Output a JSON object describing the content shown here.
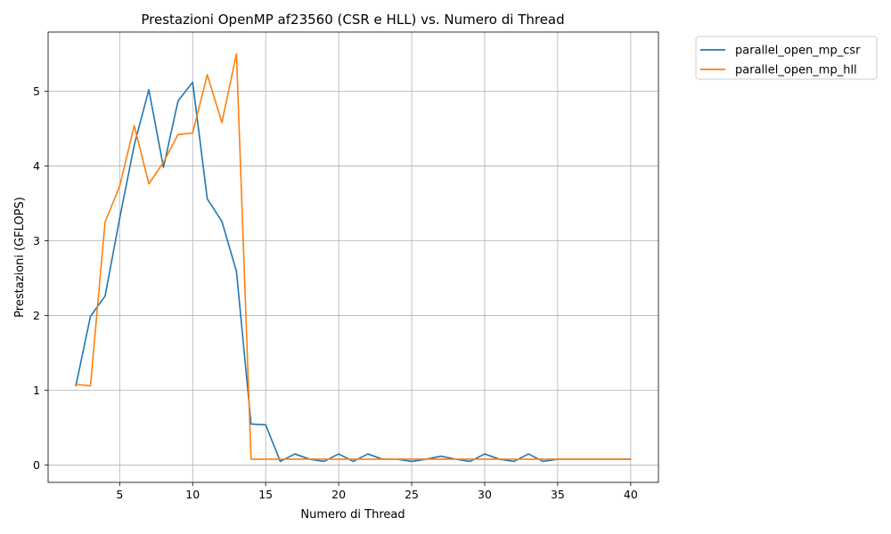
{
  "chart_data": {
    "type": "line",
    "title": "Prestazioni OpenMP af23560 (CSR e HLL) vs. Numero di Thread",
    "xlabel": "Numero di Thread",
    "ylabel": "Prestazioni (GFLOPS)",
    "xlim": [
      0.1,
      41.9
    ],
    "ylim": [
      -0.23,
      5.79
    ],
    "xticks": [
      5,
      10,
      15,
      20,
      25,
      30,
      35,
      40
    ],
    "xtick_labels": [
      "5",
      "10",
      "15",
      "20",
      "25",
      "30",
      "35",
      "40"
    ],
    "yticks": [
      0,
      1,
      2,
      3,
      4,
      5
    ],
    "ytick_labels": [
      "0",
      "1",
      "2",
      "3",
      "4",
      "5"
    ],
    "grid": true,
    "legend_position": "outside upper right",
    "x": [
      2,
      3,
      4,
      5,
      6,
      7,
      8,
      9,
      10,
      11,
      12,
      13,
      14,
      15,
      16,
      17,
      18,
      19,
      20,
      21,
      22,
      23,
      24,
      25,
      26,
      27,
      28,
      29,
      30,
      31,
      32,
      33,
      34,
      35,
      36,
      37,
      38,
      39,
      40
    ],
    "series": [
      {
        "name": "parallel_open_mp_csr",
        "color": "#1f77b4",
        "values": [
          1.06,
          1.99,
          2.26,
          3.3,
          4.28,
          5.02,
          3.98,
          4.87,
          5.12,
          3.56,
          3.26,
          2.59,
          0.55,
          0.54,
          0.05,
          0.15,
          0.08,
          0.05,
          0.15,
          0.05,
          0.15,
          0.08,
          0.08,
          0.05,
          0.08,
          0.12,
          0.08,
          0.05,
          0.15,
          0.08,
          0.05,
          0.15,
          0.05,
          0.08,
          0.08,
          0.08,
          0.08,
          0.08,
          0.08
        ]
      },
      {
        "name": "parallel_open_mp_hll",
        "color": "#ff7f0e",
        "values": [
          1.08,
          1.06,
          3.25,
          3.73,
          4.54,
          3.76,
          4.05,
          4.42,
          4.44,
          5.22,
          4.58,
          5.5,
          0.08,
          0.08,
          0.08,
          0.08,
          0.08,
          0.08,
          0.08,
          0.08,
          0.08,
          0.08,
          0.08,
          0.08,
          0.08,
          0.08,
          0.08,
          0.08,
          0.08,
          0.08,
          0.08,
          0.08,
          0.08,
          0.08,
          0.08,
          0.08,
          0.08,
          0.08,
          0.08
        ]
      }
    ]
  }
}
